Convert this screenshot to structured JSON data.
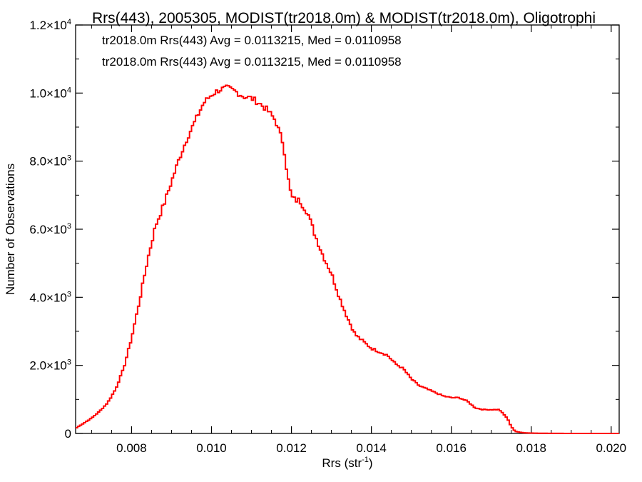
{
  "chart_data": {
    "type": "line",
    "title": "Rrs(443), 2005305, MODIST(tr2018.0m) & MODIST(tr2018.0m), Oligotrophi",
    "xlabel_main": "Rrs (str",
    "xlabel_sup": "-1",
    "xlabel_close": ")",
    "ylabel": "Number of Observations",
    "xlim": [
      0.0066,
      0.0202
    ],
    "ylim": [
      0,
      12000
    ],
    "x_ticks": [
      0.008,
      0.01,
      0.012,
      0.014,
      0.016,
      0.018,
      0.02
    ],
    "x_tick_labels": [
      "0.008",
      "0.010",
      "0.012",
      "0.014",
      "0.016",
      "0.018",
      "0.020"
    ],
    "y_ticks": [
      {
        "value": 0,
        "mant": "0",
        "exp": ""
      },
      {
        "value": 2000,
        "mant": "2.0×10",
        "exp": "3"
      },
      {
        "value": 4000,
        "mant": "4.0×10",
        "exp": "3"
      },
      {
        "value": 6000,
        "mant": "6.0×10",
        "exp": "3"
      },
      {
        "value": 8000,
        "mant": "8.0×10",
        "exp": "3"
      },
      {
        "value": 10000,
        "mant": "1.0×10",
        "exp": "4"
      },
      {
        "value": 12000,
        "mant": "1.2×10",
        "exp": "4"
      }
    ],
    "annotations": [
      {
        "text": "tr2018.0m Rrs(443) Avg = 0.0113215, Med = 0.0110958",
        "color": "#000000"
      },
      {
        "text": "tr2018.0m Rrs(443) Avg = 0.0113215, Med = 0.0110958",
        "color": "#ff0000"
      }
    ],
    "series": [
      {
        "color": "#ff0000",
        "x": [
          0.0066,
          0.007,
          0.0072,
          0.0074,
          0.0076,
          0.0078,
          0.008,
          0.0082,
          0.0084,
          0.0086,
          0.0088,
          0.009,
          0.0092,
          0.0094,
          0.0096,
          0.0098,
          0.01,
          0.0102,
          0.0104,
          0.0106,
          0.0108,
          0.011,
          0.0112,
          0.0114,
          0.0116,
          0.0118,
          0.0119,
          0.012,
          0.0121,
          0.0122,
          0.0124,
          0.0126,
          0.0128,
          0.013,
          0.0132,
          0.0134,
          0.0136,
          0.0138,
          0.014,
          0.0142,
          0.0144,
          0.0146,
          0.0148,
          0.015,
          0.0152,
          0.0154,
          0.0156,
          0.0158,
          0.016,
          0.0162,
          0.0164,
          0.0166,
          0.0168,
          0.017,
          0.0172,
          0.0174,
          0.0175,
          0.0176,
          0.0178,
          0.018,
          0.0182,
          0.019,
          0.0202
        ],
        "values": [
          150,
          450,
          650,
          900,
          1300,
          1900,
          2800,
          3900,
          5100,
          6100,
          6700,
          7400,
          8100,
          8700,
          9200,
          9700,
          9950,
          10100,
          10150,
          10050,
          9900,
          9850,
          9700,
          9500,
          9200,
          8500,
          7600,
          6950,
          6850,
          6850,
          6500,
          5800,
          5200,
          4700,
          4000,
          3400,
          2900,
          2700,
          2500,
          2400,
          2300,
          2050,
          1900,
          1600,
          1400,
          1300,
          1200,
          1100,
          1050,
          1050,
          950,
          750,
          700,
          700,
          700,
          450,
          200,
          60,
          20,
          10,
          5,
          0,
          0
        ]
      }
    ]
  }
}
